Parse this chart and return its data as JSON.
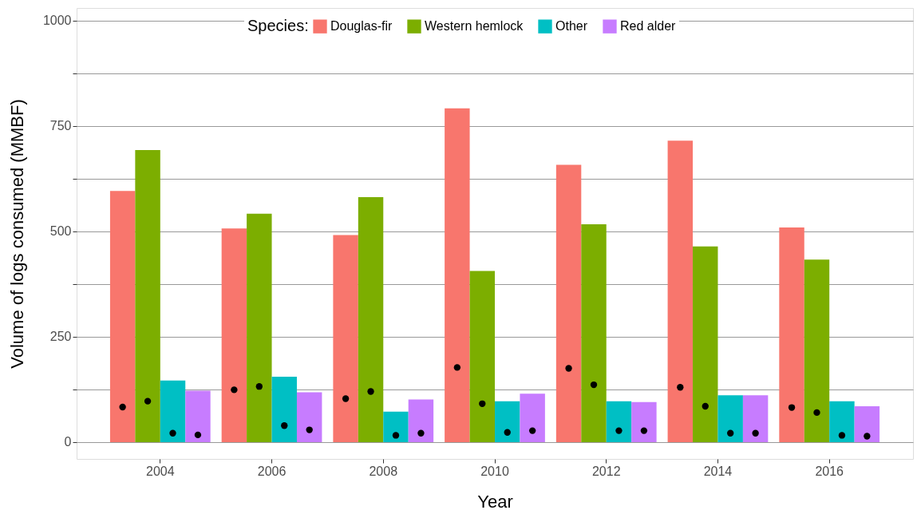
{
  "chart_data": {
    "type": "bar",
    "xlabel": "Year",
    "ylabel": "Volume of logs consumed (MMBF)",
    "legend_title": "Species:",
    "categories": [
      "2004",
      "2006",
      "2008",
      "2010",
      "2012",
      "2014",
      "2016"
    ],
    "series": [
      {
        "name": "Douglas-fir",
        "color": "#f8766d",
        "values": [
          596,
          507,
          491,
          792,
          658,
          715,
          509
        ]
      },
      {
        "name": "Western hemlock",
        "color": "#7cae00",
        "values": [
          693,
          542,
          581,
          406,
          517,
          464,
          433
        ]
      },
      {
        "name": "Other",
        "color": "#00bfc4",
        "values": [
          146,
          155,
          72,
          97,
          97,
          111,
          97
        ]
      },
      {
        "name": "Red alder",
        "color": "#c77cff",
        "values": [
          122,
          118,
          101,
          115,
          95,
          111,
          85
        ]
      },
      {
        "type": "scatter",
        "color": "#000000",
        "values": [
          83,
          124,
          103,
          177,
          175,
          130,
          82
        ]
      },
      {
        "type": "scatter",
        "color": "#000000",
        "values": [
          97,
          132,
          120,
          91,
          136,
          85,
          70
        ]
      },
      {
        "type": "scatter",
        "color": "#000000",
        "values": [
          21,
          39,
          16,
          23,
          27,
          21,
          16
        ]
      },
      {
        "type": "scatter",
        "color": "#000000",
        "values": [
          17,
          29,
          21,
          27,
          27,
          21,
          14
        ]
      }
    ],
    "ylim": [
      -40,
      1030
    ],
    "yticks": [
      0,
      {
        "value": 125,
        "label": null
      },
      250,
      {
        "value": 375,
        "label": null
      },
      500,
      {
        "value": 625,
        "label": null
      },
      750,
      {
        "value": 875,
        "label": null
      },
      1000
    ],
    "grid": "y",
    "legend": "top",
    "marker": "circle"
  }
}
